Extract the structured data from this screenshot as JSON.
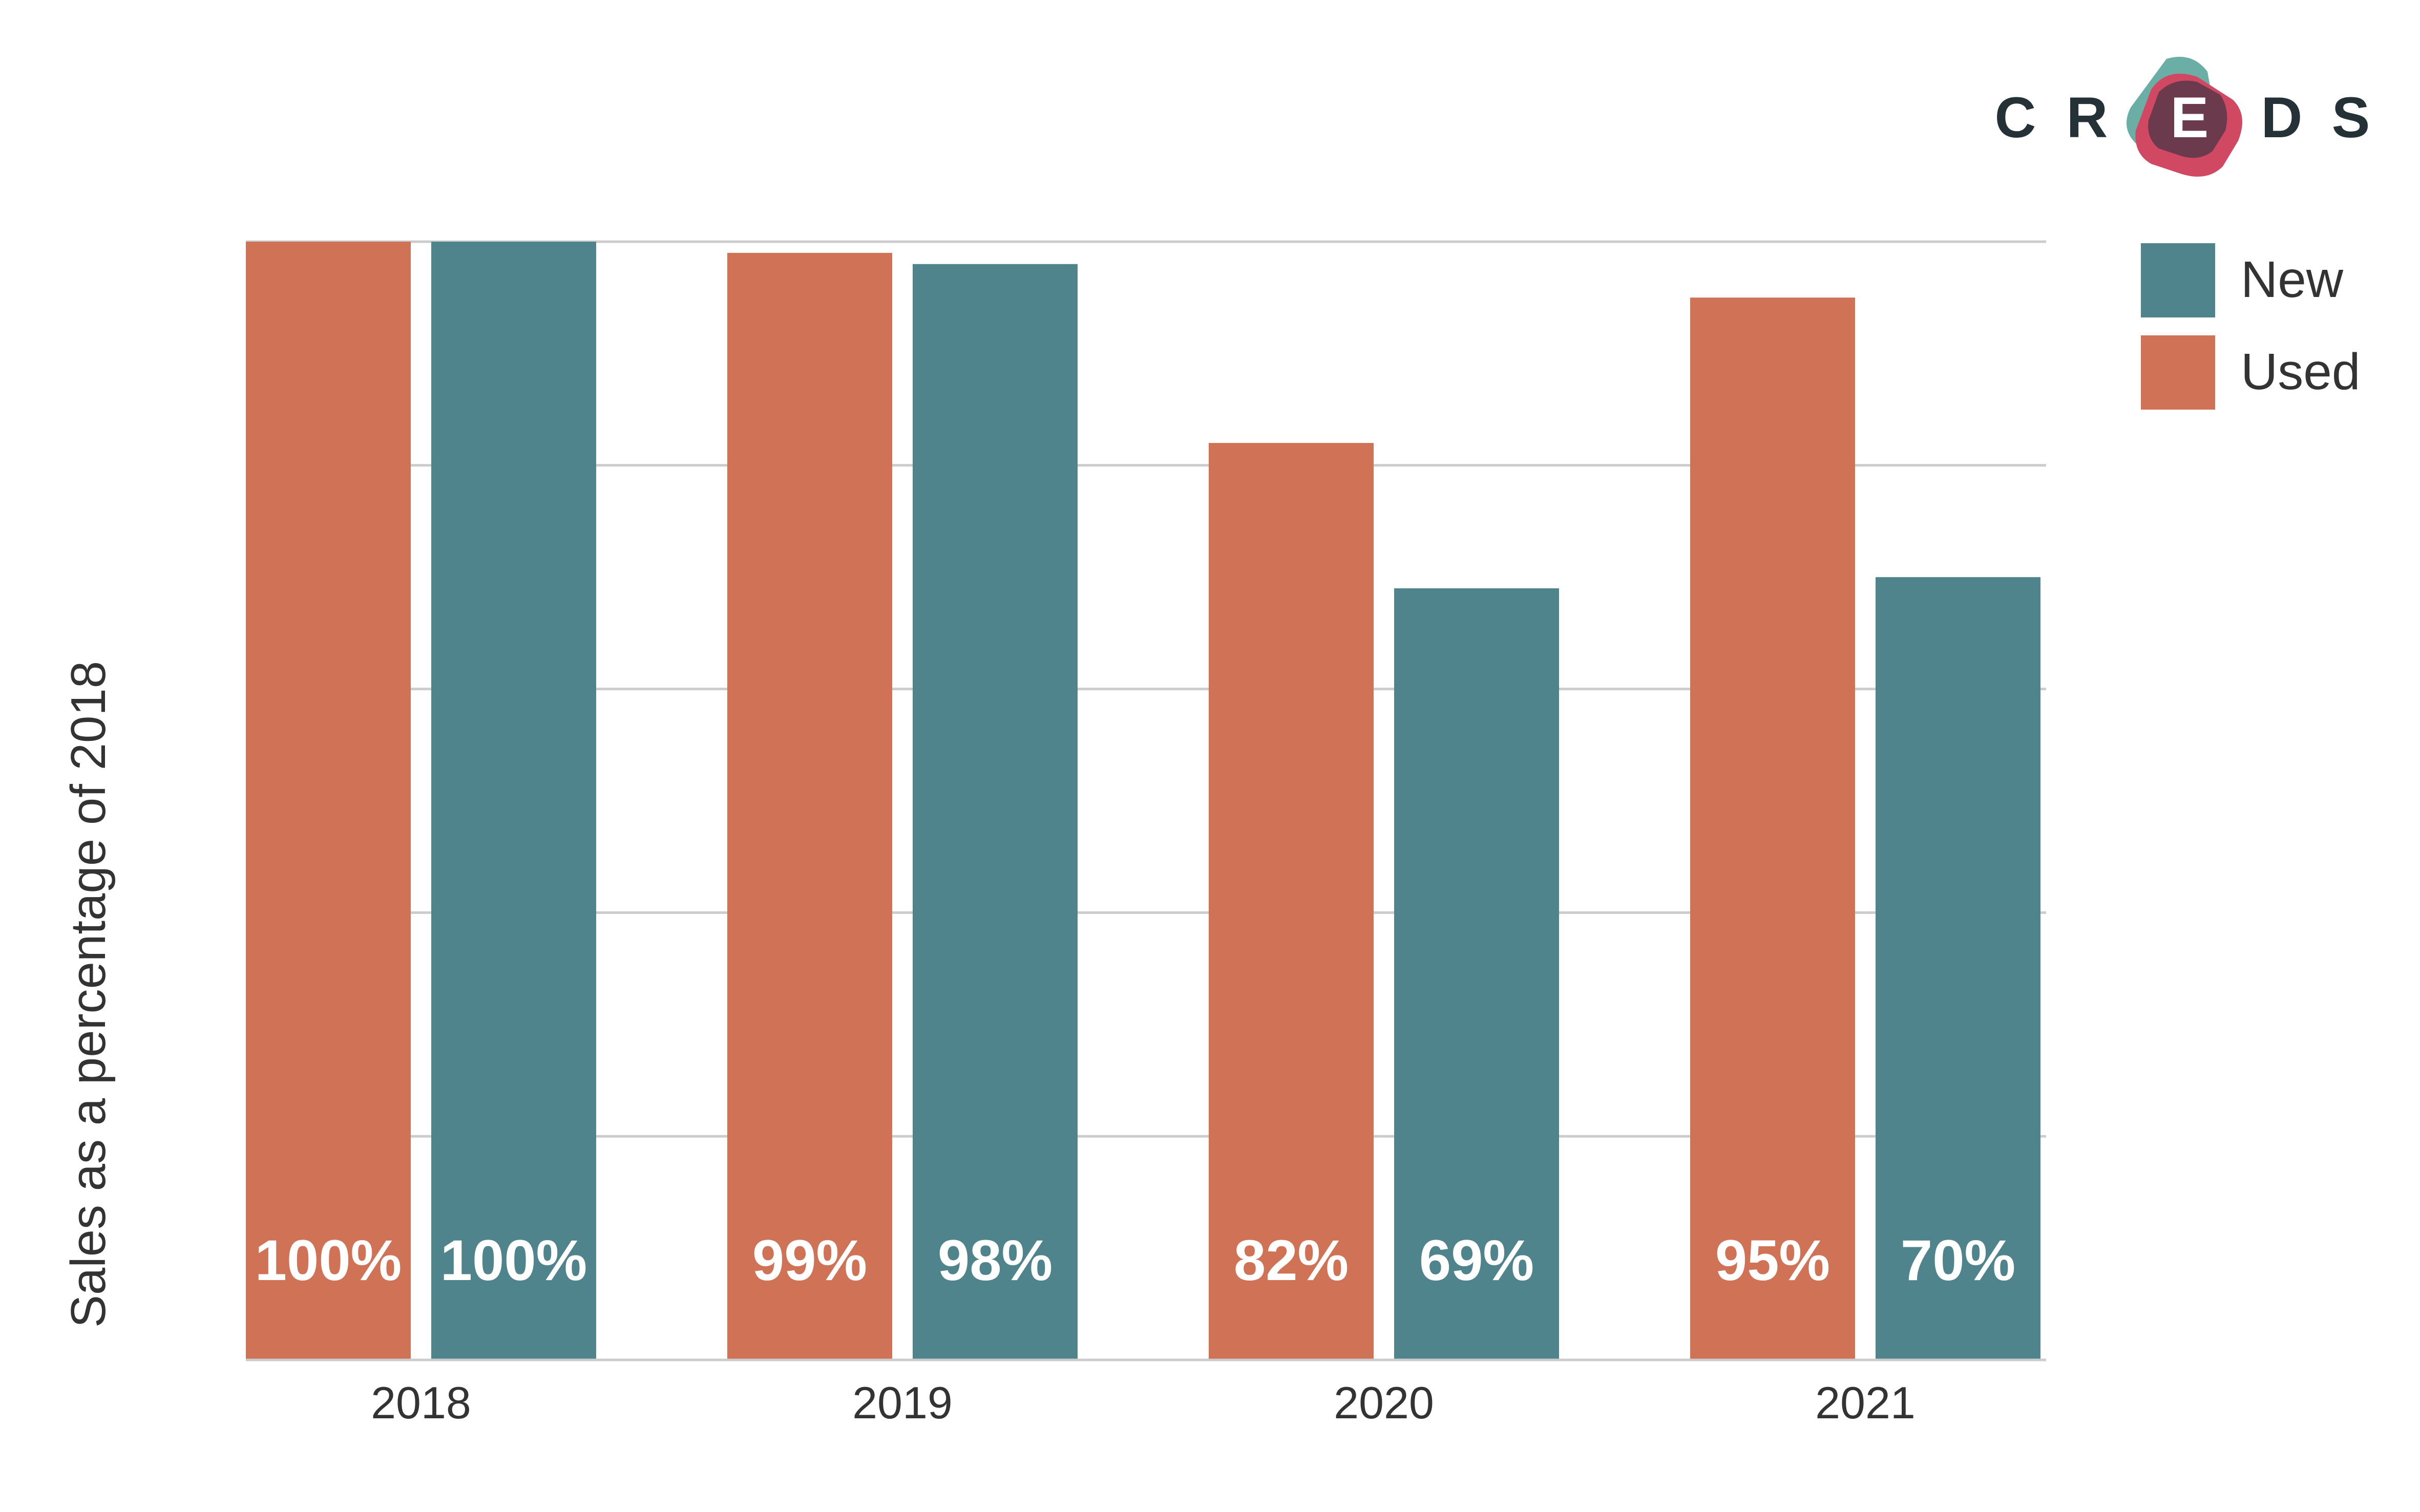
{
  "brand": {
    "letters": [
      "C",
      "R",
      "E",
      "D",
      "S"
    ],
    "text_color": "#243238",
    "teal": "#6aaea5",
    "red": "#d14862",
    "dark": "#6b3a4c"
  },
  "colors": {
    "new": "#50848c",
    "used": "#cf7255",
    "grid": "#cccccc",
    "text": "#333333",
    "label": "#ffffff"
  },
  "chart_data": {
    "type": "bar",
    "title": "",
    "xlabel": "",
    "ylabel": "Sales as a percentage of 2018",
    "categories": [
      "2018",
      "2019",
      "2020",
      "2021"
    ],
    "series": [
      {
        "name": "Used",
        "values": [
          100,
          99,
          82,
          95
        ],
        "labels": [
          "100%",
          "99%",
          "82%",
          "95%"
        ]
      },
      {
        "name": "New",
        "values": [
          100,
          98,
          69,
          70
        ],
        "labels": [
          "100%",
          "98%",
          "69%",
          "70%"
        ]
      }
    ],
    "ylim": [
      0,
      100
    ],
    "grid": true,
    "legend": {
      "position": "top-right",
      "order": [
        "New",
        "Used"
      ]
    }
  }
}
